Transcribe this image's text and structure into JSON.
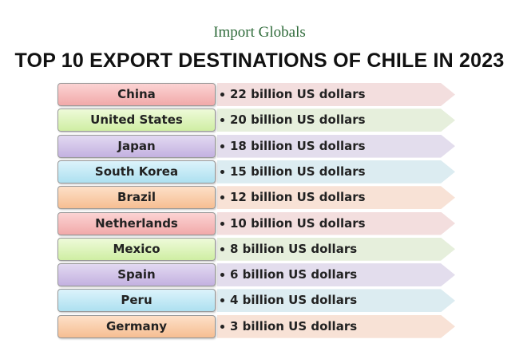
{
  "header": {
    "brand": "Import Globals",
    "title": "TOP 10 EXPORT DESTINATIONS OF CHILE IN 2023"
  },
  "rows": [
    {
      "country": "China",
      "value": "22 billion US dollars"
    },
    {
      "country": "United States",
      "value": "20 billion US dollars"
    },
    {
      "country": "Japan",
      "value": "18 billion US dollars"
    },
    {
      "country": "South Korea",
      "value": "15 billion US dollars"
    },
    {
      "country": "Brazil",
      "value": "12 billion US dollars"
    },
    {
      "country": "Netherlands",
      "value": "10 billion US dollars"
    },
    {
      "country": "Mexico",
      "value": "8 billion US dollars"
    },
    {
      "country": "Spain",
      "value": "6 billion US dollars"
    },
    {
      "country": "Peru",
      "value": "4 billion US dollars"
    },
    {
      "country": "Germany",
      "value": "3 billion US dollars"
    }
  ]
}
